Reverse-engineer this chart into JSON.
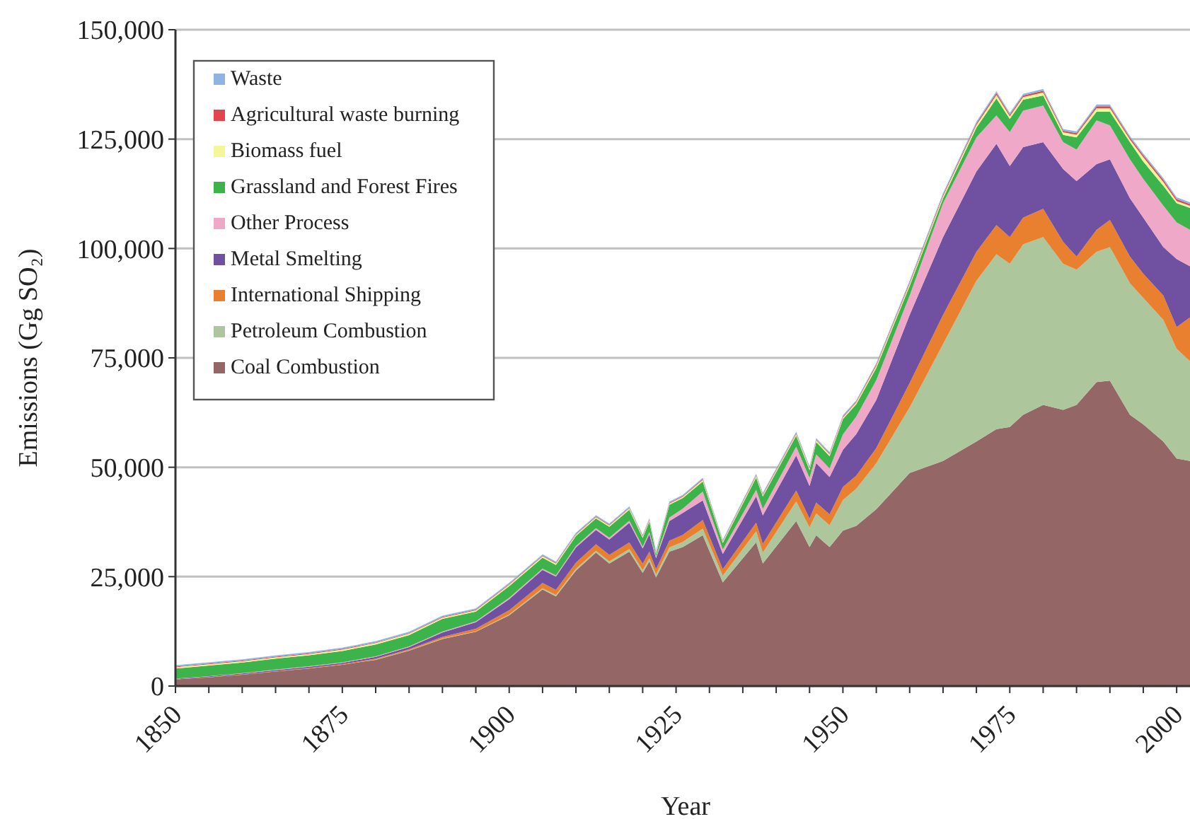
{
  "chart_data": {
    "type": "area",
    "stacked": true,
    "xlabel": "Year",
    "ylabel": "Emissions (Gg SO₂)",
    "x": [
      1850,
      1855,
      1860,
      1865,
      1870,
      1875,
      1880,
      1885,
      1890,
      1895,
      1900,
      1905,
      1907,
      1910,
      1913,
      1915,
      1918,
      1920,
      1921,
      1922,
      1924,
      1926,
      1929,
      1932,
      1937,
      1938,
      1943,
      1945,
      1946,
      1948,
      1950,
      1952,
      1955,
      1960,
      1965,
      1970,
      1973,
      1975,
      1977,
      1980,
      1983,
      1985,
      1988,
      1990,
      1993,
      1995,
      1998,
      2000,
      2002
    ],
    "series": [
      {
        "name": "Coal Combustion",
        "color": "#946666",
        "values": [
          1500,
          2000,
          2600,
          3300,
          4000,
          4850,
          6000,
          8100,
          10750,
          12400,
          16150,
          22050,
          20500,
          26400,
          30500,
          28000,
          30700,
          25850,
          28500,
          24800,
          30700,
          31750,
          34450,
          23700,
          32850,
          28000,
          37700,
          31750,
          34450,
          31750,
          35500,
          36600,
          40400,
          48700,
          51450,
          55900,
          58700,
          59200,
          62000,
          64250,
          63100,
          64250,
          69450,
          69800,
          62000,
          59800,
          55900,
          52000,
          51450
        ]
      },
      {
        "name": "Petroleum Combustion",
        "color": "#adc69c",
        "values": [
          0,
          0,
          0,
          0,
          0,
          0,
          50,
          50,
          100,
          100,
          200,
          300,
          300,
          400,
          400,
          500,
          600,
          600,
          700,
          700,
          1000,
          1200,
          1500,
          1500,
          2500,
          2500,
          4500,
          4500,
          5000,
          5000,
          7000,
          8500,
          10500,
          15000,
          26700,
          36700,
          40000,
          37300,
          38950,
          38350,
          33400,
          30900,
          29800,
          30550,
          30050,
          28900,
          27800,
          25050,
          22800
        ]
      },
      {
        "name": "International Shipping",
        "color": "#e98030",
        "values": [
          50,
          60,
          80,
          100,
          120,
          150,
          200,
          250,
          400,
          600,
          1000,
          1200,
          1200,
          1400,
          1500,
          1500,
          1500,
          1500,
          1500,
          1200,
          1500,
          1600,
          2000,
          1500,
          2000,
          2000,
          2500,
          2000,
          2500,
          2500,
          3000,
          3000,
          3500,
          5550,
          6650,
          6650,
          6650,
          6100,
          6100,
          6450,
          5000,
          3000,
          5000,
          6150,
          6100,
          5550,
          5550,
          5000,
          10000
        ]
      },
      {
        "name": "Metal Smelting",
        "color": "#7050a0",
        "values": [
          100,
          150,
          200,
          250,
          300,
          300,
          400,
          500,
          1000,
          1500,
          2500,
          3000,
          3000,
          3500,
          3300,
          3500,
          4500,
          3500,
          4000,
          2500,
          4500,
          5000,
          4500,
          3500,
          6000,
          6500,
          8000,
          7500,
          9000,
          8500,
          8500,
          9500,
          11000,
          15550,
          17800,
          18350,
          18600,
          16250,
          16100,
          15250,
          16650,
          17250,
          15050,
          13900,
          13350,
          12800,
          11100,
          15550,
          11700
        ]
      },
      {
        "name": "Other Process",
        "color": "#f0a8c8",
        "values": [
          50,
          60,
          80,
          100,
          100,
          120,
          150,
          150,
          200,
          200,
          300,
          300,
          300,
          300,
          400,
          400,
          500,
          400,
          500,
          400,
          800,
          1000,
          2000,
          1000,
          1500,
          1500,
          2000,
          1800,
          2000,
          2000,
          3500,
          4000,
          4500,
          4450,
          7750,
          7800,
          6450,
          7750,
          8350,
          8350,
          6150,
          7200,
          9950,
          7750,
          8900,
          8850,
          9450,
          8350,
          8300
        ]
      },
      {
        "name": "Grassland and Forest Fires",
        "color": "#3cb44b",
        "values": [
          2300,
          2400,
          2400,
          2500,
          2500,
          2600,
          2700,
          2600,
          2900,
          2200,
          2700,
          2500,
          2400,
          2300,
          2200,
          2500,
          2500,
          2000,
          2400,
          600,
          2900,
          2400,
          2300,
          1500,
          2800,
          2800,
          2500,
          1800,
          2800,
          2800,
          3500,
          2800,
          2800,
          2200,
          1100,
          2200,
          3900,
          3000,
          2500,
          2300,
          1650,
          2800,
          2000,
          3100,
          3900,
          3950,
          4500,
          4400,
          5000
        ]
      },
      {
        "name": "Biomass fuel",
        "color": "#f5f59a",
        "values": [
          300,
          300,
          300,
          300,
          300,
          300,
          300,
          300,
          300,
          300,
          300,
          300,
          300,
          300,
          300,
          300,
          300,
          300,
          300,
          300,
          300,
          300,
          350,
          300,
          350,
          350,
          400,
          400,
          400,
          400,
          400,
          400,
          500,
          500,
          500,
          600,
          800,
          600,
          600,
          700,
          600,
          600,
          800,
          800,
          600,
          1000,
          900,
          500,
          500
        ]
      },
      {
        "name": "Agricultural waste burning",
        "color": "#e0474c",
        "values": [
          150,
          150,
          150,
          150,
          150,
          150,
          150,
          150,
          150,
          150,
          150,
          150,
          150,
          150,
          150,
          150,
          150,
          150,
          150,
          150,
          150,
          150,
          200,
          150,
          200,
          200,
          200,
          200,
          200,
          200,
          200,
          200,
          300,
          300,
          300,
          400,
          450,
          350,
          350,
          400,
          350,
          350,
          450,
          450,
          400,
          450,
          500,
          450,
          400
        ]
      },
      {
        "name": "Waste",
        "color": "#8db4e2",
        "values": [
          300,
          300,
          300,
          300,
          300,
          300,
          300,
          300,
          300,
          300,
          300,
          300,
          300,
          300,
          300,
          300,
          300,
          300,
          300,
          300,
          300,
          300,
          300,
          300,
          300,
          300,
          300,
          300,
          300,
          300,
          300,
          300,
          300,
          400,
          400,
          400,
          400,
          400,
          400,
          400,
          400,
          400,
          400,
          400,
          400,
          400,
          400,
          400,
          400
        ]
      }
    ],
    "xlim": [
      1850,
      2002
    ],
    "xticks": [
      1850,
      {
        "value": 1855,
        "label": null
      },
      {
        "value": 1860,
        "label": null
      },
      {
        "value": 1865,
        "label": null
      },
      {
        "value": 1870,
        "label": null
      },
      1875,
      {
        "value": 1880,
        "label": null
      },
      {
        "value": 1885,
        "label": null
      },
      {
        "value": 1890,
        "label": null
      },
      {
        "value": 1895,
        "label": null
      },
      1900,
      {
        "value": 1905,
        "label": null
      },
      {
        "value": 1910,
        "label": null
      },
      {
        "value": 1915,
        "label": null
      },
      {
        "value": 1920,
        "label": null
      },
      1925,
      {
        "value": 1930,
        "label": null
      },
      {
        "value": 1935,
        "label": null
      },
      {
        "value": 1940,
        "label": null
      },
      {
        "value": 1945,
        "label": null
      },
      1950,
      {
        "value": 1955,
        "label": null
      },
      {
        "value": 1960,
        "label": null
      },
      {
        "value": 1965,
        "label": null
      },
      {
        "value": 1970,
        "label": null
      },
      1975,
      {
        "value": 1980,
        "label": null
      },
      {
        "value": 1985,
        "label": null
      },
      {
        "value": 1990,
        "label": null
      },
      {
        "value": 1995,
        "label": null
      },
      2000
    ],
    "ylim": [
      0,
      150000
    ],
    "yticks": [
      {
        "value": 0,
        "label": "0"
      },
      {
        "value": 25000,
        "label": "25,000"
      },
      {
        "value": 50000,
        "label": "50,000"
      },
      {
        "value": 75000,
        "label": "75,000"
      },
      {
        "value": 100000,
        "label": "100,000"
      },
      {
        "value": 125000,
        "label": "125,000"
      },
      {
        "value": 150000,
        "label": "150,000"
      }
    ],
    "grid": "y",
    "legend": "top left"
  }
}
